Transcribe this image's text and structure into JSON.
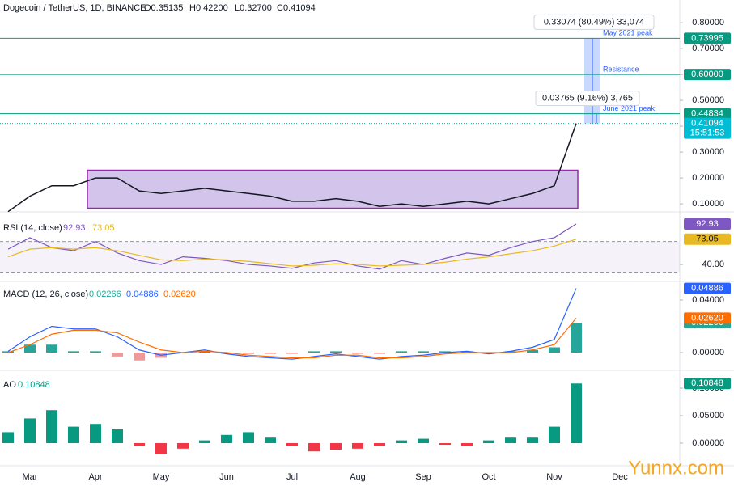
{
  "header": {
    "symbol": "Dogecoin / TetherUS, 1D, BINANCE",
    "open": "O0.35135",
    "high": "H0.42200",
    "low": "L0.32700",
    "close": "C0.41094",
    "countdown": "15:51:53"
  },
  "watermark": "Yunnx.com",
  "chart_data": [
    {
      "type": "line",
      "color": "#131722",
      "categories": [
        null,
        "Mar",
        null,
        null,
        "Apr",
        null,
        null,
        "May",
        null,
        null,
        "Jun",
        null,
        null,
        "Jul",
        null,
        null,
        "Aug",
        null,
        null,
        "Sep",
        null,
        null,
        "Oct",
        null,
        null,
        "Nov",
        null,
        null,
        "Dec"
      ],
      "values": [
        0.07,
        0.13,
        0.17,
        0.17,
        0.2,
        0.2,
        0.15,
        0.14,
        0.15,
        0.16,
        0.15,
        0.14,
        0.13,
        0.11,
        0.11,
        0.12,
        0.11,
        0.09,
        0.1,
        0.09,
        0.1,
        0.11,
        0.1,
        0.12,
        0.14,
        0.17,
        0.41094,
        null,
        null
      ],
      "ylim": [
        0.069,
        0.888
      ],
      "yticks": [
        {
          "value": 0.1,
          "label": "0.10000"
        },
        {
          "value": 0.2,
          "label": "0.20000"
        },
        {
          "value": 0.3,
          "label": "0.30000"
        },
        {
          "value": 0.4,
          "label": "0.40000"
        },
        {
          "value": 0.5,
          "label": "0.50000"
        },
        {
          "value": 0.6,
          "label": "0.60000"
        },
        {
          "value": 0.7,
          "label": "0.70000"
        },
        {
          "value": 0.8,
          "label": "0.80000"
        }
      ],
      "levels": [
        {
          "value": 0.73995,
          "label": "0.73995",
          "note": "May 2021 peak"
        },
        {
          "value": 0.6,
          "label": "0.60000",
          "note": "Resistance"
        },
        {
          "value": 0.44834,
          "label": "0.44834",
          "note": "June 2021 peak"
        }
      ],
      "range": [
        0.083,
        0.23
      ],
      "measures": [
        "0.33074 (80.49%) 33,074",
        "0.03765 (9.16%) 3,765"
      ]
    },
    {
      "type": "line",
      "title": "RSI (14, close)",
      "ylim": [
        20,
        102.4
      ],
      "yticks": [
        {
          "value": 40,
          "label": "40.00"
        }
      ],
      "bands": [
        30,
        70
      ],
      "series": [
        {
          "color": "#7e57c2",
          "values": [
            60,
            75,
            62,
            58,
            70,
            55,
            45,
            40,
            50,
            48,
            45,
            40,
            38,
            35,
            42,
            45,
            38,
            34,
            45,
            40,
            48,
            55,
            52,
            62,
            70,
            75,
            92.93,
            null,
            null
          ]
        },
        {
          "color": "#e8b923",
          "values": [
            50,
            60,
            62,
            60,
            62,
            58,
            52,
            46,
            45,
            47,
            46,
            44,
            41,
            38,
            39,
            41,
            40,
            38,
            39,
            40,
            43,
            47,
            50,
            54,
            58,
            64,
            73.05,
            null,
            null
          ]
        }
      ]
    },
    {
      "type": "macd",
      "title": "MACD (12, 26, close)",
      "ylim": [
        -0.0123,
        0.0529
      ],
      "yticks": [
        {
          "value": 0,
          "label": "0.00000"
        },
        {
          "value": 0.04,
          "label": "0.04000"
        }
      ],
      "series": [
        {
          "kind": "histogram",
          "color": "#26a69a",
          "negative_color": "#ef9a9a",
          "values": [
            0.001,
            0.006,
            0.006,
            0.001,
            0.001,
            -0.003,
            -0.006,
            -0.004,
            0,
            0.001,
            -0.001,
            -0.001,
            -0.001,
            -0.001,
            0.001,
            0.001,
            -0.001,
            -0.001,
            0.001,
            0.001,
            0.001,
            0.001,
            -0.001,
            0.001,
            0.002,
            0.004,
            0.02266,
            null,
            null
          ]
        },
        {
          "kind": "line",
          "color": "#2962ff",
          "values": [
            0.001,
            0.012,
            0.02,
            0.018,
            0.018,
            0.012,
            0.002,
            -0.002,
            0,
            0.002,
            -0.001,
            -0.003,
            -0.004,
            -0.005,
            -0.003,
            -0.001,
            -0.003,
            -0.005,
            -0.003,
            -0.002,
            0,
            0.001,
            -0.001,
            0.001,
            0.004,
            0.01,
            0.04886,
            null,
            null
          ]
        },
        {
          "kind": "line",
          "color": "#ff6d00",
          "values": [
            0,
            0.006,
            0.014,
            0.017,
            0.017,
            0.015,
            0.008,
            0.002,
            0,
            0.001,
            0,
            -0.002,
            -0.003,
            -0.004,
            -0.004,
            -0.002,
            -0.002,
            -0.004,
            -0.004,
            -0.003,
            -0.001,
            0,
            0,
            0,
            0.002,
            0.006,
            0.0262,
            null,
            null
          ],
          "value_labels": [
            null,
            null,
            null,
            null,
            null,
            null,
            null,
            null,
            null,
            null,
            null,
            null,
            null,
            null,
            null,
            null,
            null,
            null,
            null,
            null,
            null,
            null,
            null,
            null,
            null,
            null,
            "0.02620",
            null,
            null
          ]
        }
      ]
    },
    {
      "type": "histogram",
      "title": "AO",
      "ylim": [
        -0.0397,
        0.1265
      ],
      "yticks": [
        {
          "value": 0,
          "label": "0.00000"
        },
        {
          "value": 0.05,
          "label": "0.05000"
        },
        {
          "value": 0.1,
          "label": "0.10000"
        }
      ],
      "color": "#089981",
      "negative_color": "#f23645",
      "values": [
        0.02,
        0.045,
        0.06,
        0.03,
        0.035,
        0.025,
        -0.005,
        -0.02,
        -0.01,
        0.005,
        0.015,
        0.02,
        0.01,
        -0.005,
        -0.015,
        -0.012,
        -0.01,
        -0.005,
        0.005,
        0.008,
        -0.003,
        -0.005,
        0.005,
        0.01,
        0.01,
        0.03,
        0.10848,
        null,
        null
      ]
    }
  ]
}
